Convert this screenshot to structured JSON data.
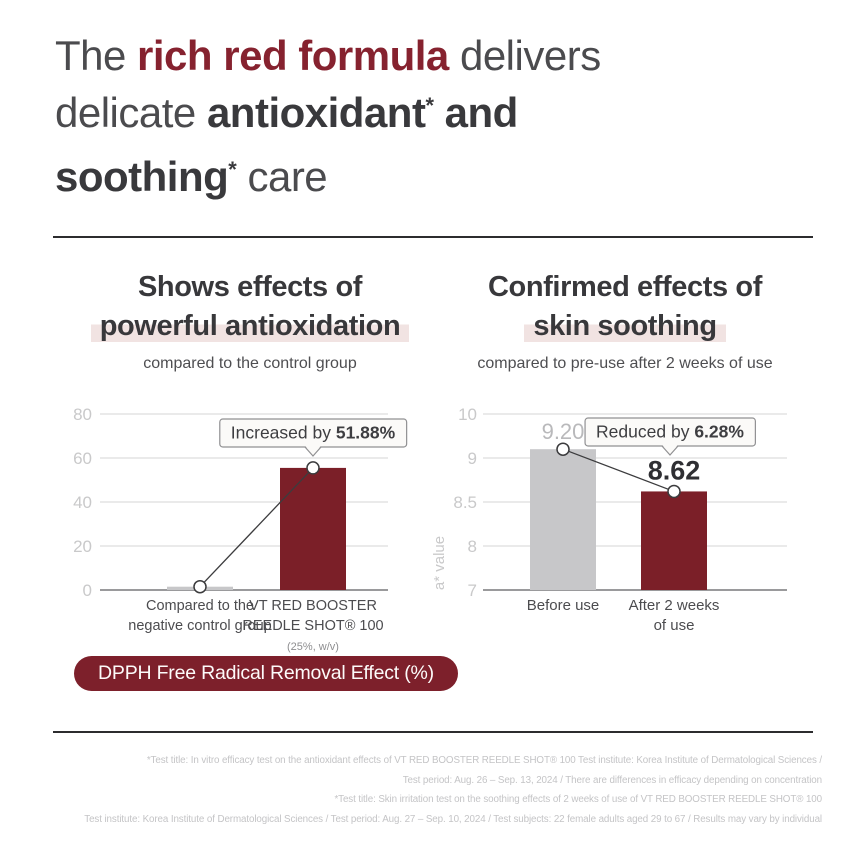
{
  "title": {
    "t1": "The ",
    "t2": "rich red formula",
    "t3": " delivers",
    "t4": "delicate ",
    "t5": "antioxidant",
    "t5_sup": "*",
    "t6": " and",
    "t7": "soothing",
    "t7_sup": "*",
    "t8": " care"
  },
  "colors": {
    "accent_red": "#7b1f28",
    "title_red": "#86222f",
    "badge_red": "#7d202b",
    "highlight_pink": "#f1e3e2",
    "bar_gray": "#c7c7c9"
  },
  "sections": {
    "left": {
      "heading_line1": "Shows effects of",
      "heading_line2": "powerful antioxidation",
      "subtitle": "compared to the control group"
    },
    "right": {
      "heading_line1": "Confirmed effects of",
      "heading_line2": "skin soothing",
      "subtitle": "compared to pre-use after 2 weeks of use"
    }
  },
  "badge": {
    "label": "DPPH Free Radical Removal Effect (%)"
  },
  "footnotes": {
    "lines": [
      "*Test title: In vitro efficacy test on the antioxidant effects of VT RED BOOSTER REEDLE SHOT® 100 Test institute: Korea Institute of Dermatological Sciences /",
      "Test period: Aug. 26 – Sep. 13, 2024 / There are differences in efficacy depending on concentration",
      "*Test title: Skin irritation test on the soothing effects of 2 weeks of use of VT RED BOOSTER REEDLE SHOT® 100",
      "Test institute: Korea Institute of Dermatological Sciences / Test period: Aug. 27 – Sep. 10, 2024 / Test subjects: 22 female adults aged 29 to 67 / Results may vary by individual"
    ]
  },
  "chart_data": [
    {
      "type": "bar",
      "title": "Shows effects of powerful antioxidation",
      "subtitle": "compared to the control group",
      "ylabel": "",
      "unit": "DPPH Free Radical Removal Effect (%)",
      "categories": [
        "Compared to the negative control group",
        "VT RED BOOSTER REEDLE SHOT® 100 (25%, w/v)"
      ],
      "values": [
        1.5,
        55.5
      ],
      "ylim": [
        0,
        80
      ],
      "grid": true,
      "axis_ticks": [
        {
          "label": "80",
          "value": 80
        },
        {
          "label": "60",
          "value": 60
        },
        {
          "label": "40",
          "value": 40
        },
        {
          "label": "20",
          "value": 20
        },
        {
          "label": "0",
          "value": 0
        }
      ],
      "bars": [
        {
          "label_lines": [
            "Compared to the",
            "negative control group"
          ],
          "value": 1.5,
          "color": "#c7c7c9"
        },
        {
          "label_lines": [
            "VT RED BOOSTER",
            "REEDLE SHOT® 100"
          ],
          "sub_label": "(25%, w/v)",
          "value": 55.5,
          "color": "#7b1f28"
        }
      ],
      "annotation": {
        "prefix": "Increased by ",
        "bold": "51.88%"
      }
    },
    {
      "type": "bar",
      "title": "Confirmed effects of skin soothing",
      "subtitle": "compared to pre-use after 2 weeks of use",
      "ylabel": "a* value",
      "categories": [
        "Before use",
        "After 2 weeks of use"
      ],
      "values": [
        9.2,
        8.62
      ],
      "ylim": [
        7,
        10
      ],
      "grid": true,
      "axis_ticks": [
        {
          "label": "10",
          "value": 10
        },
        {
          "label": "9",
          "value": 9
        },
        {
          "label": "8.5",
          "value": 8.5
        },
        {
          "label": "8",
          "value": 8
        },
        {
          "label": "7",
          "value": 7
        }
      ],
      "bars": [
        {
          "label_lines": [
            "Before use"
          ],
          "value": 9.2,
          "value_label": "9.20",
          "value_label_style": "muted",
          "color": "#c7c7c9"
        },
        {
          "label_lines": [
            "After 2 weeks",
            "of use"
          ],
          "value": 8.62,
          "value_label": "8.62",
          "value_label_style": "strong",
          "color": "#7b1f28"
        }
      ],
      "annotation": {
        "prefix": "Reduced by ",
        "bold": "6.28%"
      }
    }
  ]
}
